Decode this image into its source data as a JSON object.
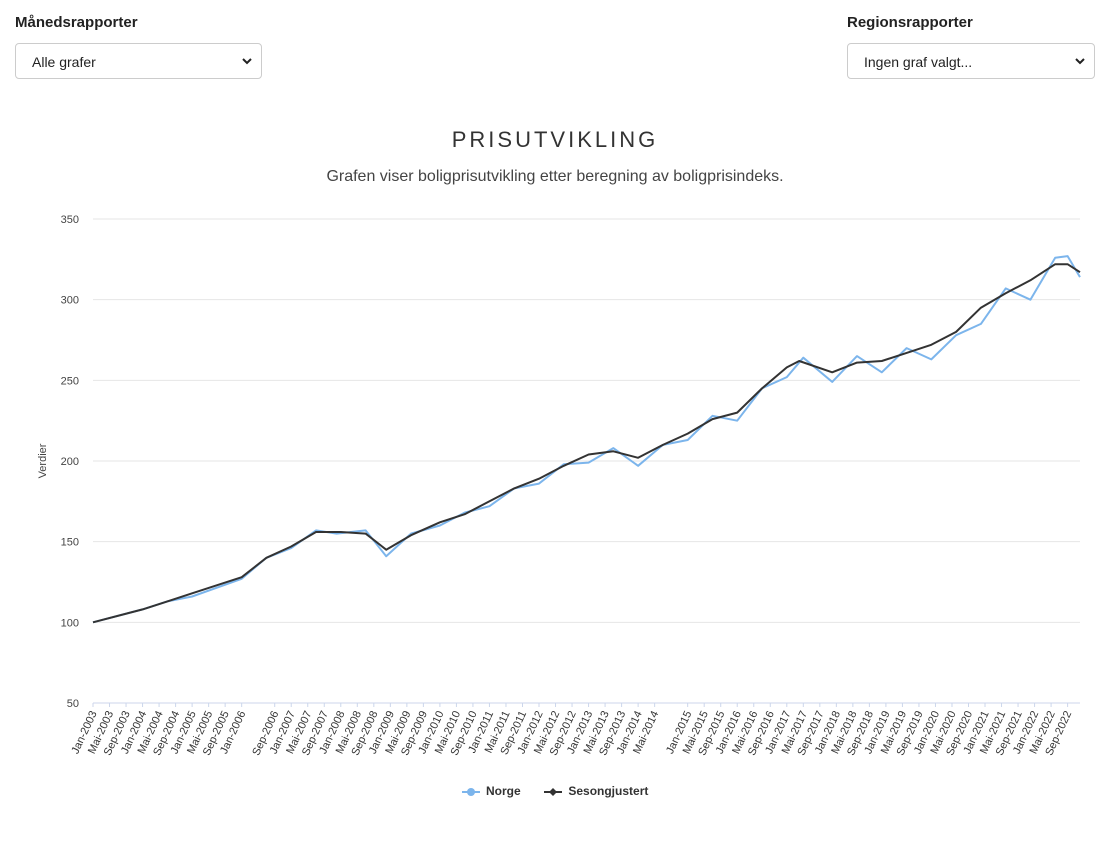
{
  "controls": {
    "monthly": {
      "label": "Månedsrapporter",
      "value": "Alle grafer"
    },
    "regional": {
      "label": "Regionsrapporter",
      "value": "Ingen graf valgt..."
    }
  },
  "colors": {
    "norge": "#7cb5ec",
    "sesong": "#333333",
    "grid": "#e6e6e6"
  },
  "chart_data": {
    "type": "line",
    "title": "PRISUTVIKLING",
    "subtitle": "Grafen viser boligprisutvikling etter beregning av boligprisindeks.",
    "ylabel": "Verdier",
    "xlabel": "",
    "ylim": [
      50,
      350
    ],
    "yticks": [
      50,
      100,
      150,
      200,
      250,
      300,
      350
    ],
    "grid": true,
    "legend_position": "bottom-center",
    "x_start": "Jan-2003",
    "x_end": "Dec-2022",
    "x_tick_labels": [
      "Jan-2003",
      "Mai-2003",
      "Sep-2003",
      "Jan-2004",
      "Mai-2004",
      "Sep-2004",
      "Jan-2005",
      "Mai-2005",
      "Sep-2005",
      "Jan-2006",
      "Sep-2006",
      "Jan-2007",
      "Mai-2007",
      "Sep-2007",
      "Jan-2008",
      "Mai-2008",
      "Sep-2008",
      "Jan-2009",
      "Mai-2009",
      "Sep-2009",
      "Jan-2010",
      "Mai-2010",
      "Sep-2010",
      "Jan-2011",
      "Mai-2011",
      "Sep-2011",
      "Jan-2012",
      "Mai-2012",
      "Sep-2012",
      "Jan-2013",
      "Mai-2013",
      "Sep-2013",
      "Jan-2014",
      "Mai-2014",
      "Jan-2015",
      "Mai-2015",
      "Sep-2015",
      "Jan-2016",
      "Mai-2016",
      "Sep-2016",
      "Jan-2017",
      "Mai-2017",
      "Sep-2017",
      "Jan-2018",
      "Mai-2018",
      "Sep-2018",
      "Jan-2019",
      "Mai-2019",
      "Sep-2019",
      "Jan-2020",
      "Mai-2020",
      "Sep-2020",
      "Jan-2021",
      "Mai-2021",
      "Sep-2021",
      "Jan-2022",
      "Mai-2022",
      "Sep-2022"
    ],
    "series": [
      {
        "name": "Norge",
        "points": [
          [
            "Jan-2003",
            100
          ],
          [
            "Jan-2004",
            108
          ],
          [
            "Jul-2004",
            113
          ],
          [
            "Jan-2005",
            116
          ],
          [
            "Jan-2006",
            127
          ],
          [
            "Jul-2006",
            140
          ],
          [
            "Jan-2007",
            146
          ],
          [
            "Jul-2007",
            157
          ],
          [
            "Dec-2007",
            155
          ],
          [
            "Jul-2008",
            157
          ],
          [
            "Dec-2008",
            141
          ],
          [
            "Jun-2009",
            155
          ],
          [
            "Jan-2010",
            160
          ],
          [
            "Jul-2010",
            168
          ],
          [
            "Jan-2011",
            172
          ],
          [
            "Jul-2011",
            183
          ],
          [
            "Jan-2012",
            186
          ],
          [
            "Jul-2012",
            198
          ],
          [
            "Jan-2013",
            199
          ],
          [
            "Jul-2013",
            208
          ],
          [
            "Jan-2014",
            197
          ],
          [
            "Jul-2014",
            210
          ],
          [
            "Jan-2015",
            213
          ],
          [
            "Jul-2015",
            228
          ],
          [
            "Jan-2016",
            225
          ],
          [
            "Jul-2016",
            245
          ],
          [
            "Jan-2017",
            252
          ],
          [
            "May-2017",
            264
          ],
          [
            "Dec-2017",
            249
          ],
          [
            "Jun-2018",
            265
          ],
          [
            "Dec-2018",
            255
          ],
          [
            "Jun-2019",
            270
          ],
          [
            "Dec-2019",
            263
          ],
          [
            "Jun-2020",
            278
          ],
          [
            "Dec-2020",
            285
          ],
          [
            "Jun-2021",
            307
          ],
          [
            "Dec-2021",
            300
          ],
          [
            "Jun-2022",
            326
          ],
          [
            "Sep-2022",
            327
          ],
          [
            "Dec-2022",
            314
          ]
        ]
      },
      {
        "name": "Sesongjustert",
        "points": [
          [
            "Jan-2003",
            100
          ],
          [
            "Jan-2004",
            108
          ],
          [
            "Jul-2004",
            113
          ],
          [
            "Jan-2005",
            118
          ],
          [
            "Jan-2006",
            128
          ],
          [
            "Jul-2006",
            140
          ],
          [
            "Jan-2007",
            147
          ],
          [
            "Jul-2007",
            156
          ],
          [
            "Jan-2008",
            156
          ],
          [
            "Jul-2008",
            155
          ],
          [
            "Dec-2008",
            145
          ],
          [
            "Jun-2009",
            154
          ],
          [
            "Jan-2010",
            162
          ],
          [
            "Jul-2010",
            167
          ],
          [
            "Jan-2011",
            175
          ],
          [
            "Jul-2011",
            183
          ],
          [
            "Jan-2012",
            189
          ],
          [
            "Jul-2012",
            197
          ],
          [
            "Jan-2013",
            204
          ],
          [
            "Jul-2013",
            206
          ],
          [
            "Jan-2014",
            202
          ],
          [
            "Jul-2014",
            210
          ],
          [
            "Jan-2015",
            217
          ],
          [
            "Jul-2015",
            226
          ],
          [
            "Jan-2016",
            230
          ],
          [
            "Jul-2016",
            245
          ],
          [
            "Jan-2017",
            258
          ],
          [
            "Apr-2017",
            262
          ],
          [
            "Dec-2017",
            255
          ],
          [
            "Jun-2018",
            261
          ],
          [
            "Dec-2018",
            262
          ],
          [
            "Jun-2019",
            267
          ],
          [
            "Dec-2019",
            272
          ],
          [
            "Jun-2020",
            280
          ],
          [
            "Dec-2020",
            295
          ],
          [
            "Jun-2021",
            304
          ],
          [
            "Dec-2021",
            312
          ],
          [
            "Jun-2022",
            322
          ],
          [
            "Sep-2022",
            322
          ],
          [
            "Dec-2022",
            317
          ]
        ]
      }
    ]
  }
}
